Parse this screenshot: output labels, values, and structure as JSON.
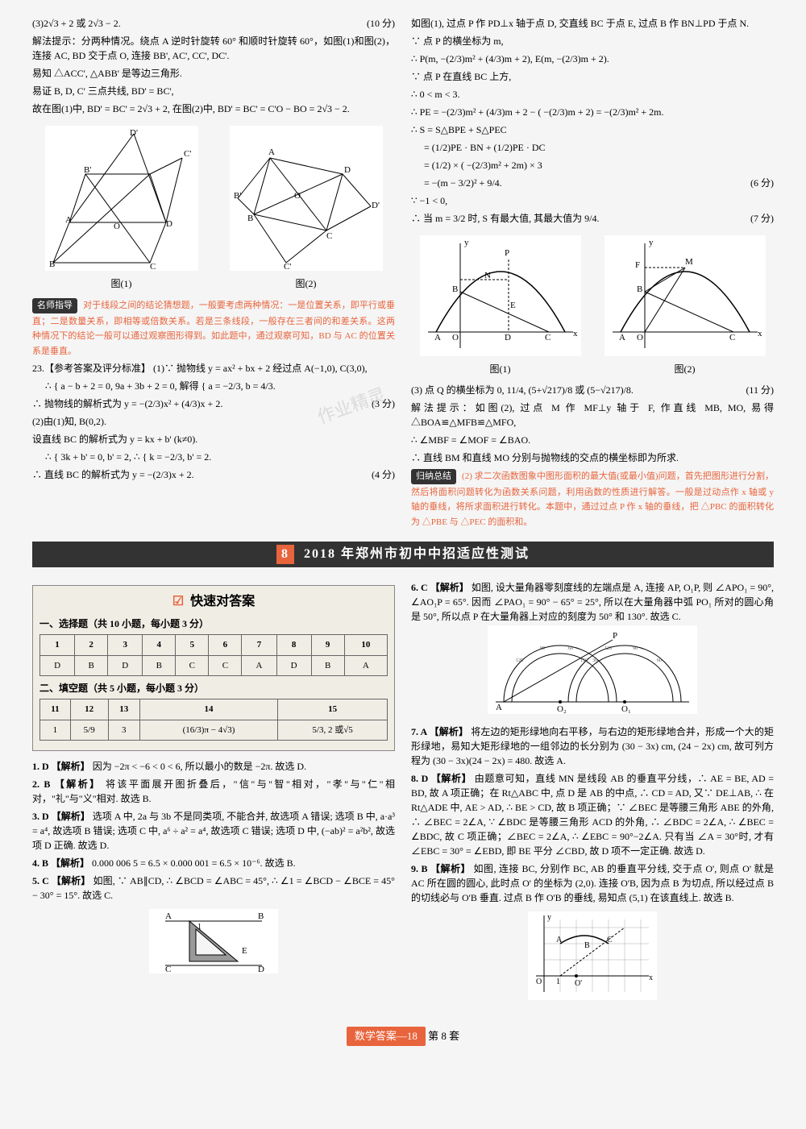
{
  "left": {
    "p1": "(3)2√3 + 2 或 2√3 − 2.",
    "p1_score": "(10 分)",
    "p2": "解法提示：分两种情况。绕点 A 逆时针旋转 60° 和顺时针旋转 60°，如图(1)和图(2)，连接 AC, BD 交于点 O, 连接 BB', AC', CC', DC'.",
    "p3": "易知 △ACC', △ABB' 是等边三角形.",
    "p4": "易证 B, D, C' 三点共线, BD' = BC',",
    "p5": "故在图(1)中, BD' = BC' = 2√3 + 2, 在图(2)中, BD' = BC' = C'O − BO = 2√3 − 2.",
    "fig1_cap": "图(1)",
    "fig2_cap": "图(2)",
    "guide_label": "名师指导",
    "guide_text": "对于线段之间的结论猜想题，一般要考虑两种情况：一是位置关系，即平行或垂直；二是数量关系，即相等或倍数关系。若是三条线段，一般存在三者间的和差关系。这两种情况下的结论一般可以通过观察图形得到。如此题中，通过观察可知，BD 与 AC 的位置关系是垂直。",
    "q23_title": "23.【参考答案及评分标准】 (1)∵ 抛物线 y = ax² + bx + 2 经过点 A(−1,0), C(3,0),",
    "q23_eq1": "∴ { a − b + 2 = 0,  9a + 3b + 2 = 0, 解得 { a = −2/3,  b = 4/3.",
    "q23_p1": "∴ 抛物线的解析式为 y = −(2/3)x² + (4/3)x + 2.",
    "q23_p1_score": "(3 分)",
    "q23_p2": "(2)由(1)知, B(0,2).",
    "q23_p3": "设直线 BC 的解析式为 y = kx + b' (k≠0).",
    "q23_eq2": "∴ { 3k + b' = 0,  b' = 2, ∴ { k = −2/3,  b' = 2.",
    "q23_p4": "∴ 直线 BC 的解析式为 y = −(2/3)x + 2.",
    "q23_p4_score": "(4 分)"
  },
  "right": {
    "p1": "如图(1), 过点 P 作 PD⊥x 轴于点 D, 交直线 BC 于点 E, 过点 B 作 BN⊥PD 于点 N.",
    "p2": "∵ 点 P 的横坐标为 m,",
    "p3": "∴ P(m, −(2/3)m² + (4/3)m + 2), E(m, −(2/3)m + 2).",
    "p4": "∵ 点 P 在直线 BC 上方,",
    "p5": "∴ 0 < m < 3.",
    "p6": "∴ PE = −(2/3)m² + (4/3)m + 2 − ( −(2/3)m + 2) = −(2/3)m² + 2m.",
    "p7": "∴ S = S△BPE + S△PEC",
    "p8": "= (1/2)PE · BN + (1/2)PE · DC",
    "p9": "= (1/2) × ( −(2/3)m² + 2m) × 3",
    "p10": "= −(m − 3/2)² + 9/4.",
    "p10_score": "(6 分)",
    "p11": "∵ −1 < 0,",
    "p12": "∴ 当 m = 3/2 时, S 有最大值, 其最大值为 9/4.",
    "p12_score": "(7 分)",
    "fig1_cap": "图(1)",
    "fig2_cap": "图(2)",
    "p13": "(3) 点 Q 的横坐标为 0, 11/4, (5+√217)/8 或 (5−√217)/8.",
    "p13_score": "(11 分)",
    "p14": "解法提示：如图(2), 过点 M 作 MF⊥y 轴于 F, 作直线 MB, MO, 易得 △BOA≌△MFB≌△MFO,",
    "p15": "∴ ∠MBF = ∠MOF = ∠BAO.",
    "p16": "∴ 直线 BM 和直线 MO 分别与抛物线的交点的横坐标即为所求.",
    "summary_label": "归纳总结",
    "summary_text": "(2) 求二次函数图象中图形面积的最大值(或最小值)问题，首先把图形进行分割，然后将面积问题转化为函数关系问题，利用函数的性质进行解答。一般是过动点作 x 轴或 y 轴的垂线，将所求面积进行转化。本题中，通过过点 P 作 x 轴的垂线，把 △PBC 的面积转化为 △PBE 与 △PEC 的面积和。"
  },
  "section_header": {
    "num": "8",
    "title": "2018 年郑州市初中中招适应性测试"
  },
  "answer_box": {
    "title": "快速对答案",
    "sub1": "一、选择题（共 10 小题，每小题 3 分）",
    "t1_headers": [
      "1",
      "2",
      "3",
      "4",
      "5",
      "6",
      "7",
      "8",
      "9",
      "10"
    ],
    "t1_row": [
      "D",
      "B",
      "D",
      "B",
      "C",
      "C",
      "A",
      "D",
      "B",
      "A"
    ],
    "sub2": "二、填空题（共 5 小题，每小题 3 分）",
    "t2_headers": [
      "11",
      "12",
      "13",
      "14",
      "15"
    ],
    "t2_row": [
      "1",
      "5/9",
      "3",
      "(16/3)π − 4√3)",
      "5/3, 2 或√5"
    ]
  },
  "explanations_left": [
    {
      "num": "1. D",
      "label": "【解析】",
      "text": "因为 −2π < −6 < 0 < 6, 所以最小的数是 −2π. 故选 D."
    },
    {
      "num": "2. B",
      "label": "【解析】",
      "text": "将该平面展开图折叠后，\"信\"与\"智\"相对，\"孝\"与\"仁\"相对，\"礼\"与\"义\"相对. 故选 B."
    },
    {
      "num": "3. D",
      "label": "【解析】",
      "text": "选项 A 中, 2a 与 3b 不是同类项, 不能合并, 故选项 A 错误; 选项 B 中, a·a³ = a⁴, 故选项 B 错误; 选项 C 中, a⁶ ÷ a² = a⁴, 故选项 C 错误; 选项 D 中, (−ab)² = a²b², 故选项 D 正确. 故选 D."
    },
    {
      "num": "4. B",
      "label": "【解析】",
      "text": "0.000 006 5 = 6.5 × 0.000 001 = 6.5 × 10⁻⁶. 故选 B."
    },
    {
      "num": "5. C",
      "label": "【解析】",
      "text": "如图, ∵ AB∥CD, ∴ ∠BCD = ∠ABC = 45°, ∴ ∠1 = ∠BCD − ∠BCE = 45° − 30° = 15°. 故选 C."
    }
  ],
  "explanations_right": [
    {
      "num": "6. C",
      "label": "【解析】",
      "text": "如图, 设大量角器零刻度线的左端点是 A, 连接 AP, O₁P, 则 ∠APO₁ = 90°, ∠AO₁P = 65°. 因而 ∠PAO₁ = 90° − 65° = 25°, 所以在大量角器中弧 PO₁ 所对的圆心角是 50°, 所以点 P 在大量角器上对应的刻度为 50° 和 130°. 故选 C."
    },
    {
      "num": "7. A",
      "label": "【解析】",
      "text": "将左边的矩形绿地向右平移，与右边的矩形绿地合并，形成一个大的矩形绿地，易知大矩形绿地的一组邻边的长分别为 (30 − 3x) cm, (24 − 2x) cm, 故可列方程为 (30 − 3x)(24 − 2x) = 480. 故选 A."
    },
    {
      "num": "8. D",
      "label": "【解析】",
      "text": "由题意可知，直线 MN 是线段 AB 的垂直平分线，∴ AE = BE, AD = BD, 故 A 项正确；在 Rt△ABC 中, 点 D 是 AB 的中点, ∴ CD = AD, 又∵ DE⊥AB, ∴ 在 Rt△ADE 中, AE > AD, ∴ BE > CD, 故 B 项正确；∵ ∠BEC 是等腰三角形 ABE 的外角, ∴ ∠BEC = 2∠A, ∵ ∠BDC 是等腰三角形 ACD 的外角, ∴ ∠BDC = 2∠A, ∴ ∠BEC = ∠BDC, 故 C 项正确；∠BEC = 2∠A, ∴ ∠EBC = 90°−2∠A. 只有当 ∠A = 30°时, 才有 ∠EBC = 30° = ∠EBD, 即 BE 平分 ∠CBD, 故 D 项不一定正确. 故选 D."
    },
    {
      "num": "9. B",
      "label": "【解析】",
      "text": "如图, 连接 BC, 分别作 BC, AB 的垂直平分线, 交于点 O', 则点 O' 就是 AC 所在圆的圆心, 此时点 O' 的坐标为 (2,0). 连接 O'B, 因为点 B 为切点, 所以经过点 B 的切线必与 O'B 垂直. 过点 B 作 O'B 的垂线, 易知点 (5,1) 在该直线上. 故选 B."
    }
  ],
  "footer": {
    "label": "数学答案—18",
    "page": "第 8 套"
  },
  "colors": {
    "accent": "#e8643c",
    "dark": "#333333",
    "bg": "#f5f5f5"
  }
}
